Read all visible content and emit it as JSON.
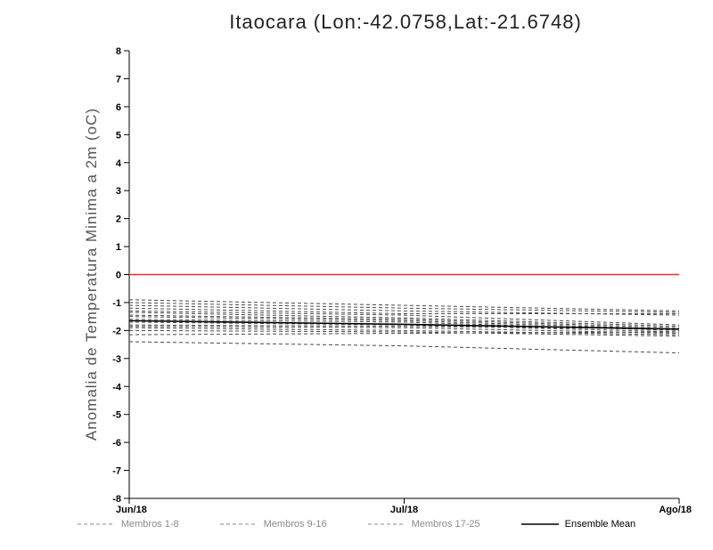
{
  "chart_data": {
    "type": "line",
    "title": "Itaocara (Lon:-42.0758,Lat:-21.6748)",
    "ylabel": "Anomalia de Temperatura Minima a 2m (oC)",
    "xlabel": "",
    "ylim": [
      -8,
      8
    ],
    "ytick_step": 1,
    "x_ticks": [
      "Jun/18",
      "Jul/18",
      "Ago/18"
    ],
    "x": [
      0,
      0.5,
      1
    ],
    "grid": false,
    "zero_line": {
      "value": 0,
      "color": "#ff2a2a"
    },
    "member_line_color": "#4a4a4a",
    "mean_line_color": "#000000",
    "series": [
      {
        "name": "Membro",
        "group": "member",
        "style": "dashed",
        "values": [
          -0.9,
          -1.1,
          -1.3
        ]
      },
      {
        "name": "Membro",
        "group": "member",
        "style": "dashed",
        "values": [
          -1.0,
          -1.2,
          -1.35
        ]
      },
      {
        "name": "Membro",
        "group": "member",
        "style": "dashed",
        "values": [
          -1.1,
          -1.3,
          -1.45
        ]
      },
      {
        "name": "Membro",
        "group": "member",
        "style": "dashed",
        "values": [
          -1.2,
          -1.4,
          -1.4
        ]
      },
      {
        "name": "Membro",
        "group": "member",
        "style": "dashed",
        "values": [
          -1.3,
          -1.45,
          -1.8
        ]
      },
      {
        "name": "Membro",
        "group": "member",
        "style": "dashed",
        "values": [
          -1.35,
          -1.55,
          -1.85
        ]
      },
      {
        "name": "Membro",
        "group": "member",
        "style": "dashed",
        "values": [
          -1.45,
          -1.6,
          -1.9
        ]
      },
      {
        "name": "Membro",
        "group": "member",
        "style": "dashed",
        "values": [
          -1.5,
          -1.65,
          -1.95
        ]
      },
      {
        "name": "Membro",
        "group": "member",
        "style": "dashed",
        "values": [
          -1.6,
          -1.7,
          -2.0
        ]
      },
      {
        "name": "Membro",
        "group": "member",
        "style": "dashed",
        "values": [
          -1.7,
          -1.8,
          -2.05
        ]
      },
      {
        "name": "Membro",
        "group": "member",
        "style": "dashed",
        "values": [
          -1.8,
          -1.85,
          -1.95
        ]
      },
      {
        "name": "Membro",
        "group": "member",
        "style": "dashed",
        "values": [
          -1.85,
          -1.9,
          -2.1
        ]
      },
      {
        "name": "Membro",
        "group": "member",
        "style": "dashed",
        "values": [
          -1.9,
          -2.0,
          -2.15
        ]
      },
      {
        "name": "Membro",
        "group": "member",
        "style": "dashed",
        "values": [
          -2.0,
          -2.05,
          -2.2
        ]
      },
      {
        "name": "Membro",
        "group": "member",
        "style": "dashed",
        "values": [
          -2.15,
          -2.1,
          -2.05
        ]
      },
      {
        "name": "Membro",
        "group": "member",
        "style": "dashed",
        "values": [
          -2.4,
          -2.55,
          -2.8
        ]
      },
      {
        "name": "Ensemble Mean",
        "group": "mean",
        "style": "solid",
        "values": [
          -1.65,
          -1.78,
          -1.95
        ]
      }
    ],
    "legend": [
      {
        "label": "Membros 1-8",
        "style": "dashed",
        "group": "member"
      },
      {
        "label": "Membros 9-16",
        "style": "dashed",
        "group": "member"
      },
      {
        "label": "Membros 17-25",
        "style": "dashed",
        "group": "member"
      },
      {
        "label": "Ensemble Mean",
        "style": "solid",
        "group": "mean"
      }
    ],
    "legend_position": "bottom"
  }
}
